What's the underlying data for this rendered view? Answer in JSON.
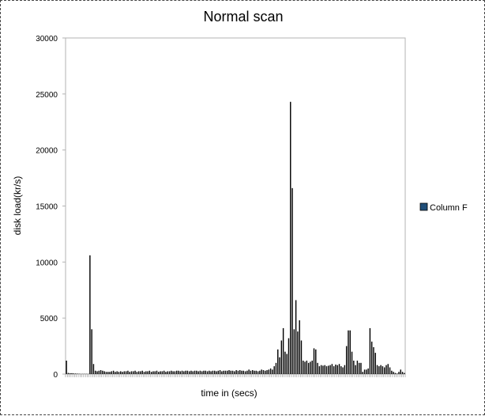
{
  "chart_data": {
    "type": "bar",
    "title": "Normal scan",
    "xlabel": "time in (secs)",
    "ylabel": "disk load(kr/s)",
    "ylim": [
      0,
      30000
    ],
    "y_ticks": [
      "0",
      "5000",
      "10000",
      "15000",
      "20000",
      "25000",
      "30000"
    ],
    "x_tick_labels_visible": false,
    "grid": false,
    "legend_position": "right",
    "series": [
      {
        "name": "Column F",
        "color": "#000000",
        "legend_color": "#1f4e79",
        "values": [
          1200,
          100,
          80,
          80,
          60,
          50,
          40,
          30,
          20,
          20,
          20,
          20,
          20,
          10600,
          4000,
          900,
          300,
          250,
          300,
          350,
          300,
          250,
          200,
          200,
          200,
          250,
          300,
          200,
          250,
          200,
          250,
          200,
          250,
          250,
          300,
          200,
          250,
          250,
          300,
          200,
          250,
          250,
          300,
          200,
          250,
          250,
          300,
          200,
          250,
          250,
          300,
          200,
          250,
          250,
          300,
          200,
          250,
          250,
          300,
          250,
          250,
          300,
          300,
          250,
          300,
          250,
          300,
          300,
          250,
          300,
          250,
          300,
          300,
          250,
          300,
          250,
          300,
          300,
          250,
          300,
          250,
          300,
          300,
          250,
          300,
          350,
          250,
          300,
          300,
          300,
          350,
          300,
          300,
          250,
          350,
          300,
          350,
          300,
          300,
          250,
          300,
          400,
          300,
          350,
          300,
          300,
          250,
          300,
          400,
          350,
          300,
          350,
          400,
          500,
          400,
          700,
          1000,
          2200,
          1500,
          3000,
          4100,
          2000,
          1800,
          3200,
          24300,
          16600,
          4000,
          6600,
          3800,
          4800,
          3000,
          1200,
          1100,
          1200,
          1000,
          1100,
          1200,
          2300,
          2200,
          1000,
          700,
          800,
          750,
          800,
          700,
          750,
          800,
          900,
          700,
          850,
          800,
          900,
          700,
          600,
          800,
          2500,
          3900,
          3900,
          2000,
          1200,
          800,
          1200,
          1000,
          1000,
          200,
          400,
          400,
          500,
          4100,
          2900,
          2400,
          1900,
          800,
          700,
          800,
          700,
          600,
          800,
          900,
          600,
          300,
          200,
          100,
          50,
          200,
          400,
          200,
          100
        ]
      }
    ]
  }
}
